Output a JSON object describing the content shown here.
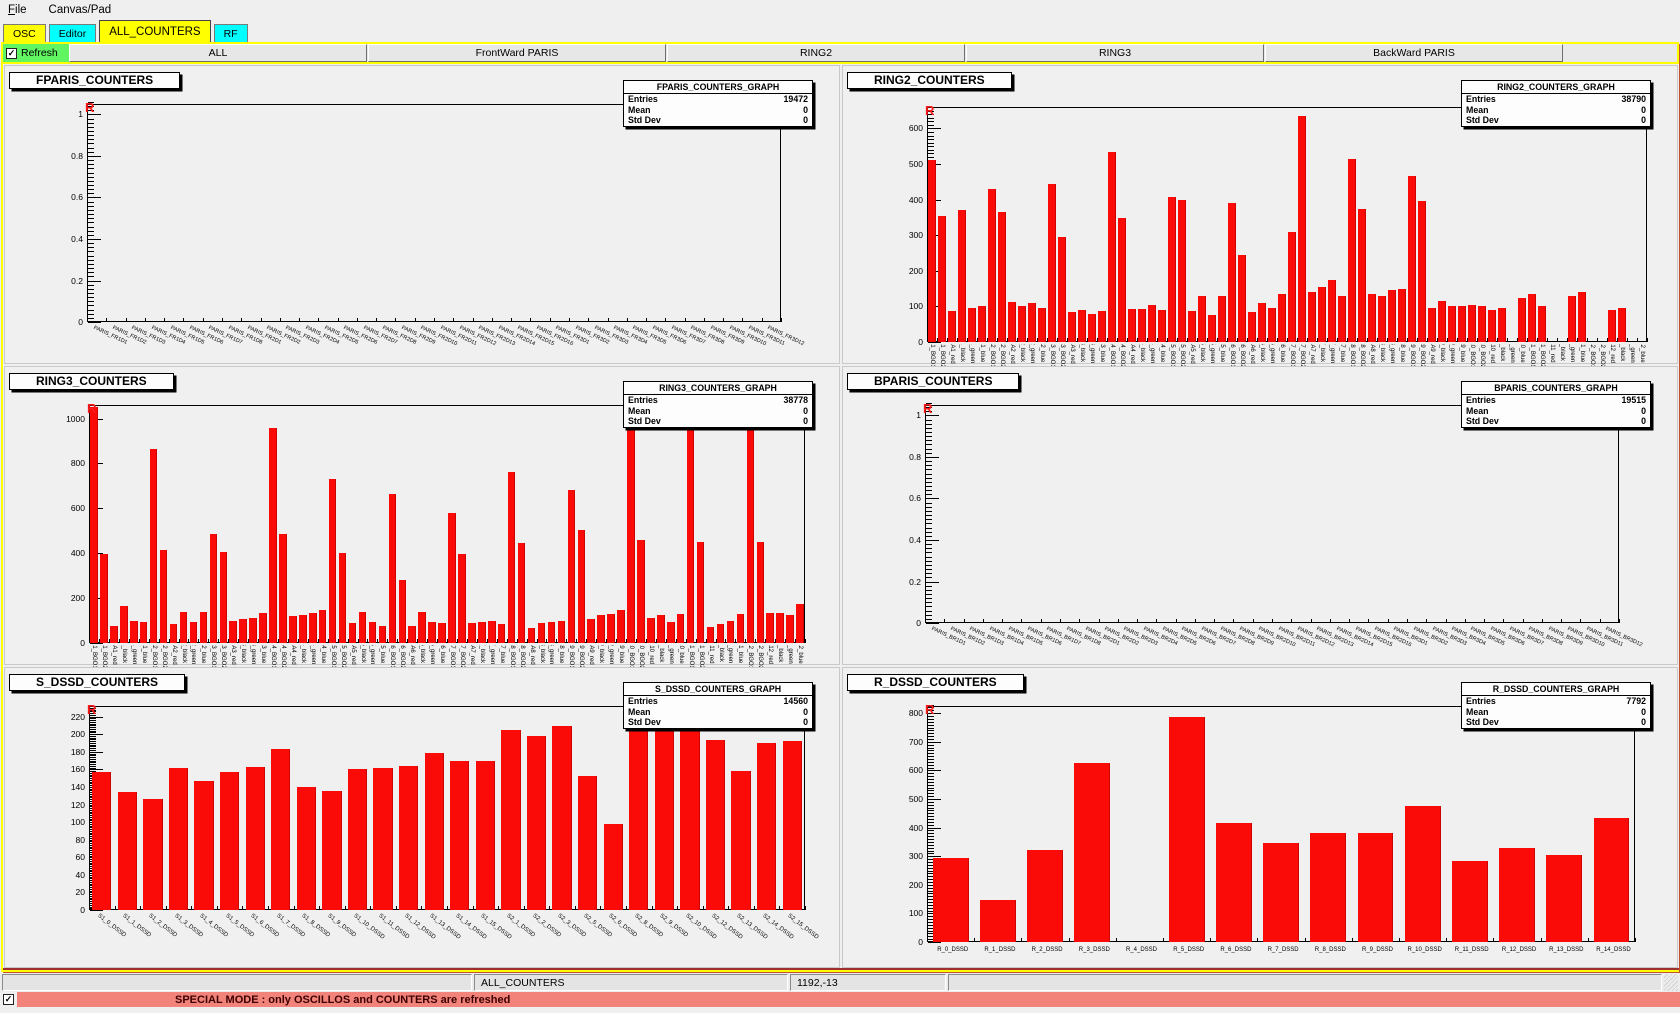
{
  "window": {
    "menu": [
      {
        "label": "File",
        "underline_first": true
      },
      {
        "label": "Canvas/Pad",
        "underline_first": false
      }
    ]
  },
  "tabs": [
    {
      "label": "OSC",
      "color": "#ffff00",
      "active": false
    },
    {
      "label": "Editor",
      "color": "#00ffff",
      "active": false
    },
    {
      "label": "ALL_COUNTERS",
      "color": "#ffff00",
      "active": true
    },
    {
      "label": "RF",
      "color": "#00ffff",
      "active": false
    }
  ],
  "toolbar": {
    "refresh_label": "Refresh",
    "refresh_checked": true,
    "buttons": [
      "ALL",
      "FrontWard PARIS",
      "RING2",
      "RING3",
      "BackWard PARIS"
    ]
  },
  "colors": {
    "bar": "#fa0b08",
    "refresh_green": "#62f562",
    "highlight": "#ffff00",
    "banner_bg": "#f2837b"
  },
  "pads": [
    {
      "marker": "R",
      "stats": {
        "title": "FPARIS_COUNTERS_GRAPH",
        "rows": [
          [
            "Entries",
            "19472"
          ],
          [
            "Mean",
            "0"
          ],
          [
            "Std Dev",
            "0"
          ]
        ]
      },
      "chart_data": {
        "type": "bar",
        "title": "FPARIS_COUNTERS",
        "ylim": [
          0,
          1.05
        ],
        "y_major_step": 0.2,
        "y_labels": [
          "0",
          "0.2",
          "0.4",
          "0.6",
          "0.8",
          "1"
        ],
        "categories": [
          "PARIS_FR1D1",
          "PARIS_FR1D2",
          "PARIS_FR1D3",
          "PARIS_FR1D4",
          "PARIS_FR1D5",
          "PARIS_FR1D6",
          "PARIS_FR1D7",
          "PARIS_FR1D8",
          "PARIS_FR2D1",
          "PARIS_FR2D2",
          "PARIS_FR2D3",
          "PARIS_FR2D4",
          "PARIS_FR2D5",
          "PARIS_FR2D6",
          "PARIS_FR2D7",
          "PARIS_FR2D8",
          "PARIS_FR2D9",
          "PARIS_FR2D10",
          "PARIS_FR2D11",
          "PARIS_FR2D12",
          "PARIS_FR2D13",
          "PARIS_FR2D14",
          "PARIS_FR2D15",
          "PARIS_FR2D16",
          "PARIS_FR3D1",
          "PARIS_FR3D2",
          "PARIS_FR3D3",
          "PARIS_FR3D4",
          "PARIS_FR3D5",
          "PARIS_FR3D6",
          "PARIS_FR3D7",
          "PARIS_FR3D8",
          "PARIS_FR3D9",
          "PARIS_FR3D10",
          "PARIS_FR3D11",
          "PARIS_FR3D12"
        ],
        "values": [
          0,
          0,
          0,
          0,
          0,
          0,
          0,
          0,
          0,
          0,
          0,
          0,
          0,
          0,
          0,
          0,
          0,
          0,
          0,
          0,
          0,
          0,
          0,
          0,
          0,
          0,
          0,
          0,
          0,
          0,
          0,
          0,
          0,
          0,
          0,
          0
        ]
      }
    },
    {
      "marker": "R",
      "stats": {
        "title": "RING2_COUNTERS_GRAPH",
        "rows": [
          [
            "Entries",
            "38790"
          ],
          [
            "Mean",
            "0"
          ],
          [
            "Std Dev",
            "0"
          ]
        ]
      },
      "chart_data": {
        "type": "bar",
        "title": "RING2_COUNTERS",
        "ylim": [
          0,
          660
        ],
        "y_major_step": 100,
        "y_labels": [
          "0",
          "100",
          "200",
          "300",
          "400",
          "500",
          "600"
        ],
        "categories": [
          "2A1_BGO1",
          "2A1_BGO2",
          "2A1_red",
          "2A1_black",
          "2A1_green",
          "2A1_blue",
          "2A2_BGO1",
          "2A2_BGO2",
          "2A2_red",
          "2A2_black",
          "2A2_green",
          "2A2_blue",
          "2A3_BGO1",
          "2A3_BGO2",
          "2A3_red",
          "2A3_black",
          "2A3_green",
          "2A3_blue",
          "2A4_BGO1",
          "2A4_BGO2",
          "2A4_red",
          "2A4_black",
          "2A4_green",
          "2A4_blue",
          "2A5_BGO1",
          "2A5_BGO2",
          "2A5_red",
          "2A5_black",
          "2A5_green",
          "2A5_blue",
          "2A6_BGO1",
          "2A6_BGO2",
          "2A6_red",
          "2A6_black",
          "2A6_green",
          "2A6_blue",
          "2A7_BGO1",
          "2A7_BGO2",
          "2A7_red",
          "2A7_black",
          "2A7_green",
          "2A7_blue",
          "2A8_BGO1",
          "2A8_BGO2",
          "2A8_red",
          "2A8_black",
          "2A8_green",
          "2A8_blue",
          "2A9_BGO1",
          "2A9_BGO2",
          "2A9_red",
          "2A9_black",
          "2A9_green",
          "2A9_blue",
          "2A10_BGO1",
          "2A10_BGO2",
          "2A10_red",
          "2A10_black",
          "2A10_green",
          "2A10_blue",
          "2A11_BGO1",
          "2A11_BGO2",
          "2A11_red",
          "2A11_black",
          "2A11_green",
          "2A11_blue",
          "2A12_BGO1",
          "2A12_BGO2",
          "2A12_red",
          "2A12_black",
          "2A12_green",
          "2A12_blue"
        ],
        "values": [
          510,
          355,
          88,
          370,
          95,
          100,
          430,
          365,
          112,
          102,
          110,
          96,
          445,
          295,
          85,
          90,
          78,
          87,
          535,
          348,
          93,
          93,
          104,
          90,
          408,
          400,
          88,
          130,
          75,
          130,
          390,
          245,
          85,
          110,
          96,
          135,
          310,
          635,
          140,
          155,
          175,
          130,
          515,
          375,
          135,
          130,
          145,
          150,
          465,
          395,
          95,
          115,
          100,
          100,
          105,
          100,
          90,
          95,
          0,
          125,
          135,
          100,
          0,
          0,
          130,
          140,
          0,
          0,
          90,
          95,
          0,
          0
        ]
      }
    },
    {
      "marker": "R",
      "stats": {
        "title": "RING3_COUNTERS_GRAPH",
        "rows": [
          [
            "Entries",
            "38778"
          ],
          [
            "Mean",
            "0"
          ],
          [
            "Std Dev",
            "0"
          ]
        ]
      },
      "chart_data": {
        "type": "bar",
        "title": "RING3_COUNTERS",
        "ylim": [
          0,
          1060
        ],
        "y_major_step": 200,
        "y_labels": [
          "0",
          "200",
          "400",
          "600",
          "800",
          "1000"
        ],
        "categories": [
          "3A1_BGO1",
          "3A1_BGO2",
          "3A1_red",
          "3A1_black",
          "3A1_green",
          "3A1_blue",
          "3A2_BGO1",
          "3A2_BGO2",
          "3A2_red",
          "3A2_black",
          "3A2_green",
          "3A2_blue",
          "3A3_BGO1",
          "3A3_BGO2",
          "3A3_red",
          "3A3_black",
          "3A3_green",
          "3A3_blue",
          "3A4_BGO1",
          "3A4_BGO2",
          "3A4_red",
          "3A4_black",
          "3A4_green",
          "3A4_blue",
          "3A5_BGO1",
          "3A5_BGO2",
          "3A5_red",
          "3A5_black",
          "3A5_green",
          "3A5_blue",
          "3A6_BGO1",
          "3A6_BGO2",
          "3A6_red",
          "3A6_black",
          "3A6_green",
          "3A6_blue",
          "3A7_BGO1",
          "3A7_BGO2",
          "3A7_red",
          "3A7_black",
          "3A7_green",
          "3A7_blue",
          "3A8_BGO1",
          "3A8_BGO2",
          "3A8_red",
          "3A8_black",
          "3A8_green",
          "3A8_blue",
          "3A9_BGO1",
          "3A9_BGO2",
          "3A9_red",
          "3A9_black",
          "3A9_green",
          "3A9_blue",
          "3A10_BGO1",
          "3A10_BGO2",
          "3A10_red",
          "3A10_black",
          "3A10_green",
          "3A10_blue",
          "3A11_BGO1",
          "3A11_BGO2",
          "3A11_red",
          "3A11_black",
          "3A11_green",
          "3A11_blue",
          "3A12_BGO1",
          "3A12_BGO2",
          "3A12_red",
          "3A12_black",
          "3A12_green",
          "3A12_blue"
        ],
        "values": [
          1050,
          395,
          75,
          165,
          100,
          95,
          865,
          415,
          85,
          140,
          95,
          140,
          485,
          405,
          100,
          105,
          110,
          135,
          960,
          485,
          120,
          125,
          135,
          145,
          730,
          400,
          90,
          140,
          95,
          75,
          665,
          280,
          75,
          140,
          95,
          90,
          580,
          395,
          90,
          95,
          100,
          85,
          760,
          445,
          65,
          90,
          95,
          100,
          680,
          505,
          105,
          125,
          130,
          145,
          1010,
          460,
          110,
          125,
          95,
          130,
          1005,
          450,
          70,
          85,
          100,
          130,
          955,
          450,
          135,
          135,
          125,
          175
        ]
      }
    },
    {
      "marker": "R",
      "stats": {
        "title": "BPARIS_COUNTERS_GRAPH",
        "rows": [
          [
            "Entries",
            "19515"
          ],
          [
            "Mean",
            "0"
          ],
          [
            "Std Dev",
            "0"
          ]
        ]
      },
      "chart_data": {
        "type": "bar",
        "title": "BPARIS_COUNTERS",
        "ylim": [
          0,
          1.05
        ],
        "y_major_step": 0.2,
        "y_labels": [
          "0",
          "0.2",
          "0.4",
          "0.6",
          "0.8",
          "1"
        ],
        "categories": [
          "PARIS_BR1D1",
          "PARIS_BR1D2",
          "PARIS_BR1D3",
          "PARIS_BR1D4",
          "PARIS_BR1D5",
          "PARIS_BR1D6",
          "PARIS_BR1D7",
          "PARIS_BR1D8",
          "PARIS_BR2D1",
          "PARIS_BR2D2",
          "PARIS_BR2D3",
          "PARIS_BR2D4",
          "PARIS_BR2D5",
          "PARIS_BR2D6",
          "PARIS_BR2D7",
          "PARIS_BR2D8",
          "PARIS_BR2D9",
          "PARIS_BR2D10",
          "PARIS_BR2D11",
          "PARIS_BR2D12",
          "PARIS_BR2D13",
          "PARIS_BR2D14",
          "PARIS_BR2D15",
          "PARIS_BR2D16",
          "PARIS_BR3D1",
          "PARIS_BR3D2",
          "PARIS_BR3D3",
          "PARIS_BR3D4",
          "PARIS_BR3D5",
          "PARIS_BR3D6",
          "PARIS_BR3D7",
          "PARIS_BR3D8",
          "PARIS_BR3D9",
          "PARIS_BR3D10",
          "PARIS_BR3D11",
          "PARIS_BR3D12"
        ],
        "values": [
          0,
          0,
          0,
          0,
          0,
          0,
          0,
          0,
          0,
          0,
          0,
          0,
          0,
          0,
          0,
          0,
          0,
          0,
          0,
          0,
          0,
          0,
          0,
          0,
          0,
          0,
          0,
          0,
          0,
          0,
          0,
          0,
          0,
          0,
          0,
          0
        ]
      }
    },
    {
      "marker": "R",
      "stats": {
        "title": "S_DSSD_COUNTERS_GRAPH",
        "rows": [
          [
            "Entries",
            "14560"
          ],
          [
            "Mean",
            "0"
          ],
          [
            "Std Dev",
            "0"
          ]
        ]
      },
      "chart_data": {
        "type": "bar",
        "title": "S_DSSD_COUNTERS",
        "ylim": [
          0,
          232
        ],
        "y_major_step": 20,
        "y_labels": [
          "0",
          "20",
          "40",
          "60",
          "80",
          "100",
          "120",
          "140",
          "160",
          "180",
          "200",
          "220"
        ],
        "categories": [
          "S1_0_DSSD",
          "S1_1_DSSD",
          "S1_2_DSSD",
          "S1_3_DSSD",
          "S1_4_DSSD",
          "S1_5_DSSD",
          "S1_6_DSSD",
          "S1_7_DSSD",
          "S1_8_DSSD",
          "S1_9_DSSD",
          "S1_10_DSSD",
          "S1_11_DSSD",
          "S1_12_DSSD",
          "S1_13_DSSD",
          "S1_14_DSSD",
          "S1_15_DSSD",
          "S2_1_DSSD",
          "S2_2_DSSD",
          "S2_3_DSSD",
          "S2_5_DSSD",
          "S2_6_DSSD",
          "S2_8_DSSD",
          "S2_9_DSSD",
          "S2_10_DSSD",
          "S2_12_DSSD",
          "S2_13_DSSD",
          "S2_14_DSSD",
          "S2_15_DSSD"
        ],
        "values": [
          157,
          134,
          126,
          161,
          147,
          157,
          163,
          183,
          140,
          135,
          160,
          161,
          164,
          179,
          170,
          170,
          205,
          198,
          209,
          152,
          98,
          221,
          213,
          214,
          193,
          158,
          190,
          192
        ]
      }
    },
    {
      "marker": "R",
      "stats": {
        "title": "R_DSSD_COUNTERS_GRAPH",
        "rows": [
          [
            "Entries",
            "7792"
          ],
          [
            "Mean",
            "0"
          ],
          [
            "Std Dev",
            "0"
          ]
        ]
      },
      "chart_data": {
        "type": "bar",
        "title": "R_DSSD_COUNTERS",
        "ylim": [
          0,
          825
        ],
        "y_major_step": 100,
        "y_labels": [
          "0",
          "100",
          "200",
          "300",
          "400",
          "500",
          "600",
          "700",
          "800"
        ],
        "categories": [
          "R_0_DSSD",
          "R_1_DSSD",
          "R_2_DSSD",
          "R_3_DSSD",
          "R_4_DSSD",
          "R_5_DSSD",
          "R_6_DSSD",
          "R_7_DSSD",
          "R_8_DSSD",
          "R_9_DSSD",
          "R_10_DSSD",
          "R_11_DSSD",
          "R_12_DSSD",
          "R_13_DSSD",
          "R_14_DSSD"
        ],
        "values": [
          295,
          148,
          322,
          625,
          0,
          785,
          415,
          345,
          380,
          380,
          475,
          285,
          328,
          305,
          432
        ]
      }
    }
  ],
  "statusbar": {
    "segments": [
      "",
      "ALL_COUNTERS",
      "1192,-13",
      ""
    ]
  },
  "banner": {
    "checked": true,
    "text": "SPECIAL MODE : only OSCILLOS and COUNTERS are refreshed"
  }
}
